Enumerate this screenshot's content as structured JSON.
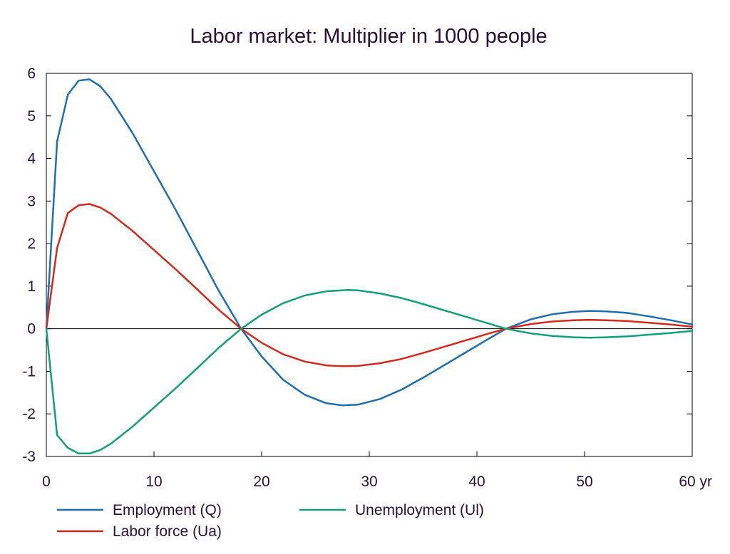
{
  "chart_data": {
    "type": "line",
    "title": "Labor market: Multiplier in 1000 people",
    "xlabel": "",
    "ylabel": "",
    "xlim": [
      0,
      60
    ],
    "ylim": [
      -3,
      6
    ],
    "x_ticks": [
      "0",
      "10",
      "20",
      "30",
      "40",
      "50",
      "60 yr"
    ],
    "x_tick_values": [
      0,
      10,
      20,
      30,
      40,
      50,
      60
    ],
    "y_ticks": [
      "6",
      "5",
      "4",
      "3",
      "2",
      "1",
      "0",
      "-1",
      "-2",
      "-3"
    ],
    "y_tick_values": [
      6,
      5,
      4,
      3,
      2,
      1,
      0,
      -1,
      -2,
      -3
    ],
    "grid": false,
    "legend_position": "bottom",
    "series": [
      {
        "name": "Employment (Q)",
        "color": "#1f6fb0",
        "points": [
          [
            0,
            0
          ],
          [
            1,
            4.4
          ],
          [
            2,
            5.5
          ],
          [
            3,
            5.83
          ],
          [
            4,
            5.86
          ],
          [
            5,
            5.7
          ],
          [
            6,
            5.4
          ],
          [
            8,
            4.6
          ],
          [
            10,
            3.7
          ],
          [
            12,
            2.8
          ],
          [
            14,
            1.85
          ],
          [
            16,
            0.9
          ],
          [
            18.1,
            0
          ],
          [
            20,
            -0.65
          ],
          [
            22,
            -1.2
          ],
          [
            24,
            -1.55
          ],
          [
            26,
            -1.75
          ],
          [
            27.5,
            -1.8
          ],
          [
            29,
            -1.78
          ],
          [
            31,
            -1.65
          ],
          [
            33,
            -1.43
          ],
          [
            35,
            -1.15
          ],
          [
            37,
            -0.85
          ],
          [
            39,
            -0.55
          ],
          [
            41,
            -0.25
          ],
          [
            42.7,
            0
          ],
          [
            45,
            0.22
          ],
          [
            47,
            0.34
          ],
          [
            49,
            0.4
          ],
          [
            50.5,
            0.42
          ],
          [
            52,
            0.41
          ],
          [
            54,
            0.37
          ],
          [
            56,
            0.29
          ],
          [
            58,
            0.2
          ],
          [
            60,
            0.1
          ]
        ]
      },
      {
        "name": "Labor force (Ua)",
        "color": "#d42a1e",
        "points": [
          [
            0,
            0
          ],
          [
            1,
            1.9
          ],
          [
            2,
            2.72
          ],
          [
            3,
            2.9
          ],
          [
            4,
            2.93
          ],
          [
            5,
            2.85
          ],
          [
            6,
            2.7
          ],
          [
            8,
            2.3
          ],
          [
            10,
            1.85
          ],
          [
            12,
            1.4
          ],
          [
            14,
            0.93
          ],
          [
            16,
            0.45
          ],
          [
            18.1,
            0
          ],
          [
            20,
            -0.33
          ],
          [
            22,
            -0.6
          ],
          [
            24,
            -0.77
          ],
          [
            26,
            -0.86
          ],
          [
            27.5,
            -0.88
          ],
          [
            29,
            -0.87
          ],
          [
            31,
            -0.81
          ],
          [
            33,
            -0.71
          ],
          [
            35,
            -0.57
          ],
          [
            37,
            -0.42
          ],
          [
            39,
            -0.27
          ],
          [
            41,
            -0.12
          ],
          [
            42.7,
            0
          ],
          [
            45,
            0.11
          ],
          [
            47,
            0.17
          ],
          [
            49,
            0.2
          ],
          [
            50.5,
            0.21
          ],
          [
            52,
            0.2
          ],
          [
            54,
            0.18
          ],
          [
            56,
            0.14
          ],
          [
            58,
            0.1
          ],
          [
            60,
            0.05
          ]
        ]
      },
      {
        "name": "Unemployment (Ul)",
        "color": "#12a079",
        "points": [
          [
            0,
            0
          ],
          [
            1,
            -2.5
          ],
          [
            2,
            -2.8
          ],
          [
            3,
            -2.93
          ],
          [
            4,
            -2.93
          ],
          [
            5,
            -2.85
          ],
          [
            6,
            -2.7
          ],
          [
            8,
            -2.3
          ],
          [
            10,
            -1.85
          ],
          [
            12,
            -1.4
          ],
          [
            14,
            -0.93
          ],
          [
            16,
            -0.45
          ],
          [
            18.1,
            0
          ],
          [
            20,
            0.33
          ],
          [
            22,
            0.6
          ],
          [
            24,
            0.78
          ],
          [
            26,
            0.88
          ],
          [
            28,
            0.91
          ],
          [
            29,
            0.9
          ],
          [
            31,
            0.83
          ],
          [
            33,
            0.72
          ],
          [
            35,
            0.58
          ],
          [
            37,
            0.43
          ],
          [
            39,
            0.28
          ],
          [
            41,
            0.13
          ],
          [
            42.7,
            0
          ],
          [
            45,
            -0.11
          ],
          [
            47,
            -0.17
          ],
          [
            49,
            -0.2
          ],
          [
            50.5,
            -0.21
          ],
          [
            52,
            -0.2
          ],
          [
            54,
            -0.18
          ],
          [
            56,
            -0.14
          ],
          [
            58,
            -0.1
          ],
          [
            60,
            -0.05
          ]
        ]
      }
    ]
  }
}
